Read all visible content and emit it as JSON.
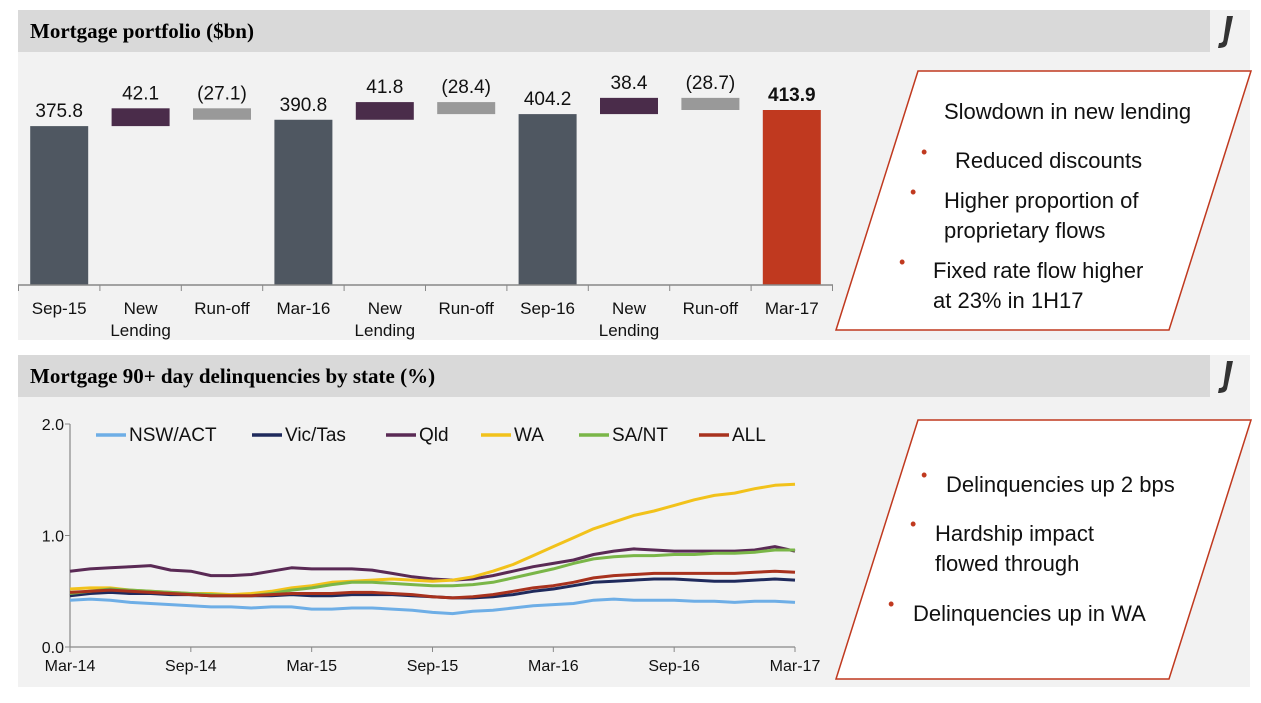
{
  "top_panel": {
    "title": "Mortgage portfolio ($bn)",
    "callout": {
      "heading": "Slowdown in new lending",
      "bullets": [
        [
          "Reduced discounts"
        ],
        [
          "Higher proportion of",
          "proprietary flows"
        ],
        [
          "Fixed rate flow higher",
          "at 23% in 1H17"
        ]
      ]
    }
  },
  "bottom_panel": {
    "title": "Mortgage 90+ day delinquencies by state (%)",
    "callout": {
      "bullets": [
        [
          "Delinquencies up 2 bps"
        ],
        [
          "Hardship impact",
          "flowed through"
        ],
        [
          "Delinquencies up in WA"
        ]
      ]
    }
  },
  "colors": {
    "balance": "#4f5761",
    "new_lending": "#4a2c4a",
    "run_off": "#999999",
    "final": "#c0391f",
    "callout_border": "#c0391f",
    "bullet": "#c0391f"
  },
  "chart_data": [
    {
      "type": "bar",
      "subtype": "waterfall",
      "categories": [
        [
          "Sep-15"
        ],
        [
          "New",
          "Lending"
        ],
        [
          "Run-off"
        ],
        [
          "Mar-16"
        ],
        [
          "New",
          "Lending"
        ],
        [
          "Run-off"
        ],
        [
          "Sep-16"
        ],
        [
          "New",
          "Lending"
        ],
        [
          "Run-off"
        ],
        [
          "Mar-17"
        ]
      ],
      "values": [
        375.8,
        42.1,
        -27.1,
        390.8,
        41.8,
        -28.4,
        404.2,
        38.4,
        -28.7,
        413.9
      ],
      "labels": [
        "375.8",
        "42.1",
        "(27.1)",
        "390.8",
        "41.8",
        "(28.4)",
        "404.2",
        "38.4",
        "(28.7)",
        "413.9"
      ],
      "kinds": [
        "total",
        "increase",
        "decrease",
        "total",
        "increase",
        "decrease",
        "total",
        "increase",
        "decrease",
        "final"
      ],
      "y_axis": "hidden",
      "grid": false
    },
    {
      "type": "line",
      "x_ticks": [
        "Mar-14",
        "Sep-14",
        "Mar-15",
        "Sep-15",
        "Mar-16",
        "Sep-16",
        "Mar-17"
      ],
      "x_range": [
        "Mar-14",
        "Mar-17"
      ],
      "y_ticks": [
        "0.0",
        "1.0",
        "2.0"
      ],
      "ylim": [
        0,
        2
      ],
      "grid": false,
      "legend": "top",
      "series": [
        {
          "name": "NSW/ACT",
          "color": "#6eaee6",
          "values": [
            0.42,
            0.43,
            0.42,
            0.4,
            0.39,
            0.38,
            0.37,
            0.36,
            0.36,
            0.35,
            0.36,
            0.36,
            0.34,
            0.34,
            0.35,
            0.35,
            0.34,
            0.33,
            0.31,
            0.3,
            0.32,
            0.33,
            0.35,
            0.37,
            0.38,
            0.39,
            0.42,
            0.43,
            0.42,
            0.42,
            0.42,
            0.41,
            0.41,
            0.4,
            0.41,
            0.41,
            0.4
          ]
        },
        {
          "name": "Vic/Tas",
          "color": "#1f2a5c",
          "values": [
            0.46,
            0.48,
            0.49,
            0.48,
            0.48,
            0.47,
            0.47,
            0.46,
            0.46,
            0.46,
            0.46,
            0.47,
            0.46,
            0.46,
            0.47,
            0.47,
            0.47,
            0.46,
            0.45,
            0.44,
            0.44,
            0.45,
            0.47,
            0.5,
            0.52,
            0.55,
            0.58,
            0.59,
            0.6,
            0.61,
            0.61,
            0.6,
            0.59,
            0.59,
            0.6,
            0.61,
            0.6
          ]
        },
        {
          "name": "Qld",
          "color": "#5a2a55",
          "values": [
            0.68,
            0.7,
            0.71,
            0.72,
            0.73,
            0.69,
            0.68,
            0.64,
            0.64,
            0.65,
            0.68,
            0.71,
            0.7,
            0.7,
            0.7,
            0.69,
            0.66,
            0.63,
            0.61,
            0.6,
            0.61,
            0.64,
            0.68,
            0.72,
            0.75,
            0.78,
            0.83,
            0.86,
            0.88,
            0.87,
            0.86,
            0.86,
            0.86,
            0.86,
            0.87,
            0.9,
            0.86
          ]
        },
        {
          "name": "WA",
          "color": "#f2c21b",
          "values": [
            0.52,
            0.53,
            0.53,
            0.51,
            0.5,
            0.49,
            0.48,
            0.48,
            0.47,
            0.48,
            0.5,
            0.53,
            0.55,
            0.58,
            0.59,
            0.6,
            0.61,
            0.6,
            0.59,
            0.6,
            0.63,
            0.68,
            0.74,
            0.82,
            0.9,
            0.98,
            1.06,
            1.12,
            1.18,
            1.22,
            1.27,
            1.32,
            1.36,
            1.38,
            1.42,
            1.45,
            1.46
          ]
        },
        {
          "name": "SA/NT",
          "color": "#7ab648",
          "values": [
            0.48,
            0.5,
            0.52,
            0.51,
            0.5,
            0.49,
            0.48,
            0.47,
            0.46,
            0.46,
            0.48,
            0.51,
            0.53,
            0.56,
            0.58,
            0.58,
            0.57,
            0.56,
            0.55,
            0.55,
            0.56,
            0.58,
            0.62,
            0.66,
            0.7,
            0.75,
            0.79,
            0.81,
            0.82,
            0.82,
            0.83,
            0.83,
            0.84,
            0.84,
            0.85,
            0.87,
            0.87
          ]
        },
        {
          "name": "ALL",
          "color": "#a8321e",
          "values": [
            0.49,
            0.5,
            0.51,
            0.5,
            0.49,
            0.48,
            0.47,
            0.46,
            0.46,
            0.46,
            0.47,
            0.48,
            0.48,
            0.48,
            0.49,
            0.49,
            0.48,
            0.47,
            0.45,
            0.44,
            0.45,
            0.47,
            0.5,
            0.53,
            0.55,
            0.58,
            0.62,
            0.64,
            0.65,
            0.66,
            0.66,
            0.66,
            0.66,
            0.66,
            0.67,
            0.68,
            0.67
          ]
        }
      ]
    }
  ]
}
